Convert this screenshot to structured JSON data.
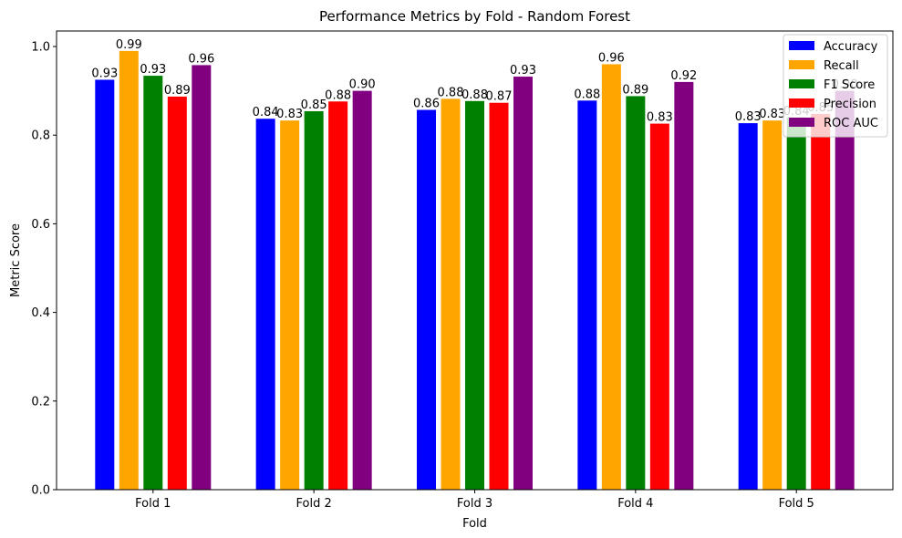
{
  "chart_data": {
    "type": "bar",
    "title": "Performance Metrics by Fold - Random Forest",
    "xlabel": "Fold",
    "ylabel": "Metric Score",
    "categories": [
      "Fold 1",
      "Fold 2",
      "Fold 3",
      "Fold 4",
      "Fold 5"
    ],
    "ylim": [
      0,
      1.035
    ],
    "yticks": [
      0.0,
      0.2,
      0.4,
      0.6,
      0.8,
      1.0
    ],
    "ytick_labels": [
      "0.0",
      "0.2",
      "0.4",
      "0.6",
      "0.8",
      "1.0"
    ],
    "grid": false,
    "legend_position": "top-right",
    "series": [
      {
        "name": "Accuracy",
        "color": "#0000ff",
        "values": [
          0.925,
          0.837,
          0.857,
          0.878,
          0.827
        ],
        "labels": [
          "0.93",
          "0.84",
          "0.86",
          "0.88",
          "0.83"
        ]
      },
      {
        "name": "Recall",
        "color": "#ffa500",
        "values": [
          0.99,
          0.833,
          0.882,
          0.96,
          0.833
        ],
        "labels": [
          "0.99",
          "0.83",
          "0.88",
          "0.96",
          "0.83"
        ]
      },
      {
        "name": "F1 Score",
        "color": "#008000",
        "values": [
          0.934,
          0.854,
          0.877,
          0.888,
          0.84
        ],
        "labels": [
          "0.93",
          "0.85",
          "0.88",
          "0.89",
          "0.84"
        ]
      },
      {
        "name": "Precision",
        "color": "#ff0000",
        "values": [
          0.887,
          0.876,
          0.873,
          0.826,
          0.848
        ],
        "labels": [
          "0.89",
          "0.88",
          "0.87",
          "0.83",
          "0.85"
        ]
      },
      {
        "name": "ROC AUC",
        "color": "#800080",
        "values": [
          0.958,
          0.9,
          0.932,
          0.92,
          0.9
        ],
        "labels": [
          "0.96",
          "0.90",
          "0.93",
          "0.92",
          "0.90"
        ]
      }
    ]
  }
}
